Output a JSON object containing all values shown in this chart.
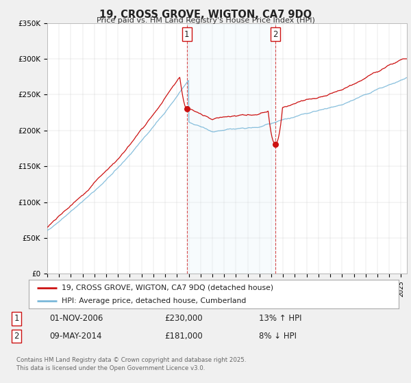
{
  "title": "19, CROSS GROVE, WIGTON, CA7 9DQ",
  "subtitle": "Price paid vs. HM Land Registry's House Price Index (HPI)",
  "ylabel_ticks": [
    "£0",
    "£50K",
    "£100K",
    "£150K",
    "£200K",
    "£250K",
    "£300K",
    "£350K"
  ],
  "ytick_vals": [
    0,
    50000,
    100000,
    150000,
    200000,
    250000,
    300000,
    350000
  ],
  "ylim": [
    0,
    350000
  ],
  "xlim_start": 1995.0,
  "xlim_end": 2025.5,
  "sale1": {
    "date_x": 2006.833,
    "price": 230000,
    "label": "1",
    "date_str": "01-NOV-2006",
    "pct": "13% ↑ HPI"
  },
  "sale2": {
    "date_x": 2014.36,
    "price": 181000,
    "label": "2",
    "date_str": "09-MAY-2014",
    "pct": "8% ↓ HPI"
  },
  "hpi_color": "#7ab8d9",
  "price_color": "#cc1111",
  "shading_color": "#d6eaf5",
  "vline_color": "#cc1111",
  "legend_line1": "19, CROSS GROVE, WIGTON, CA7 9DQ (detached house)",
  "legend_line2": "HPI: Average price, detached house, Cumberland",
  "footnote": "Contains HM Land Registry data © Crown copyright and database right 2025.\nThis data is licensed under the Open Government Licence v3.0.",
  "background_color": "#f0f0f0",
  "plot_background": "#ffffff"
}
